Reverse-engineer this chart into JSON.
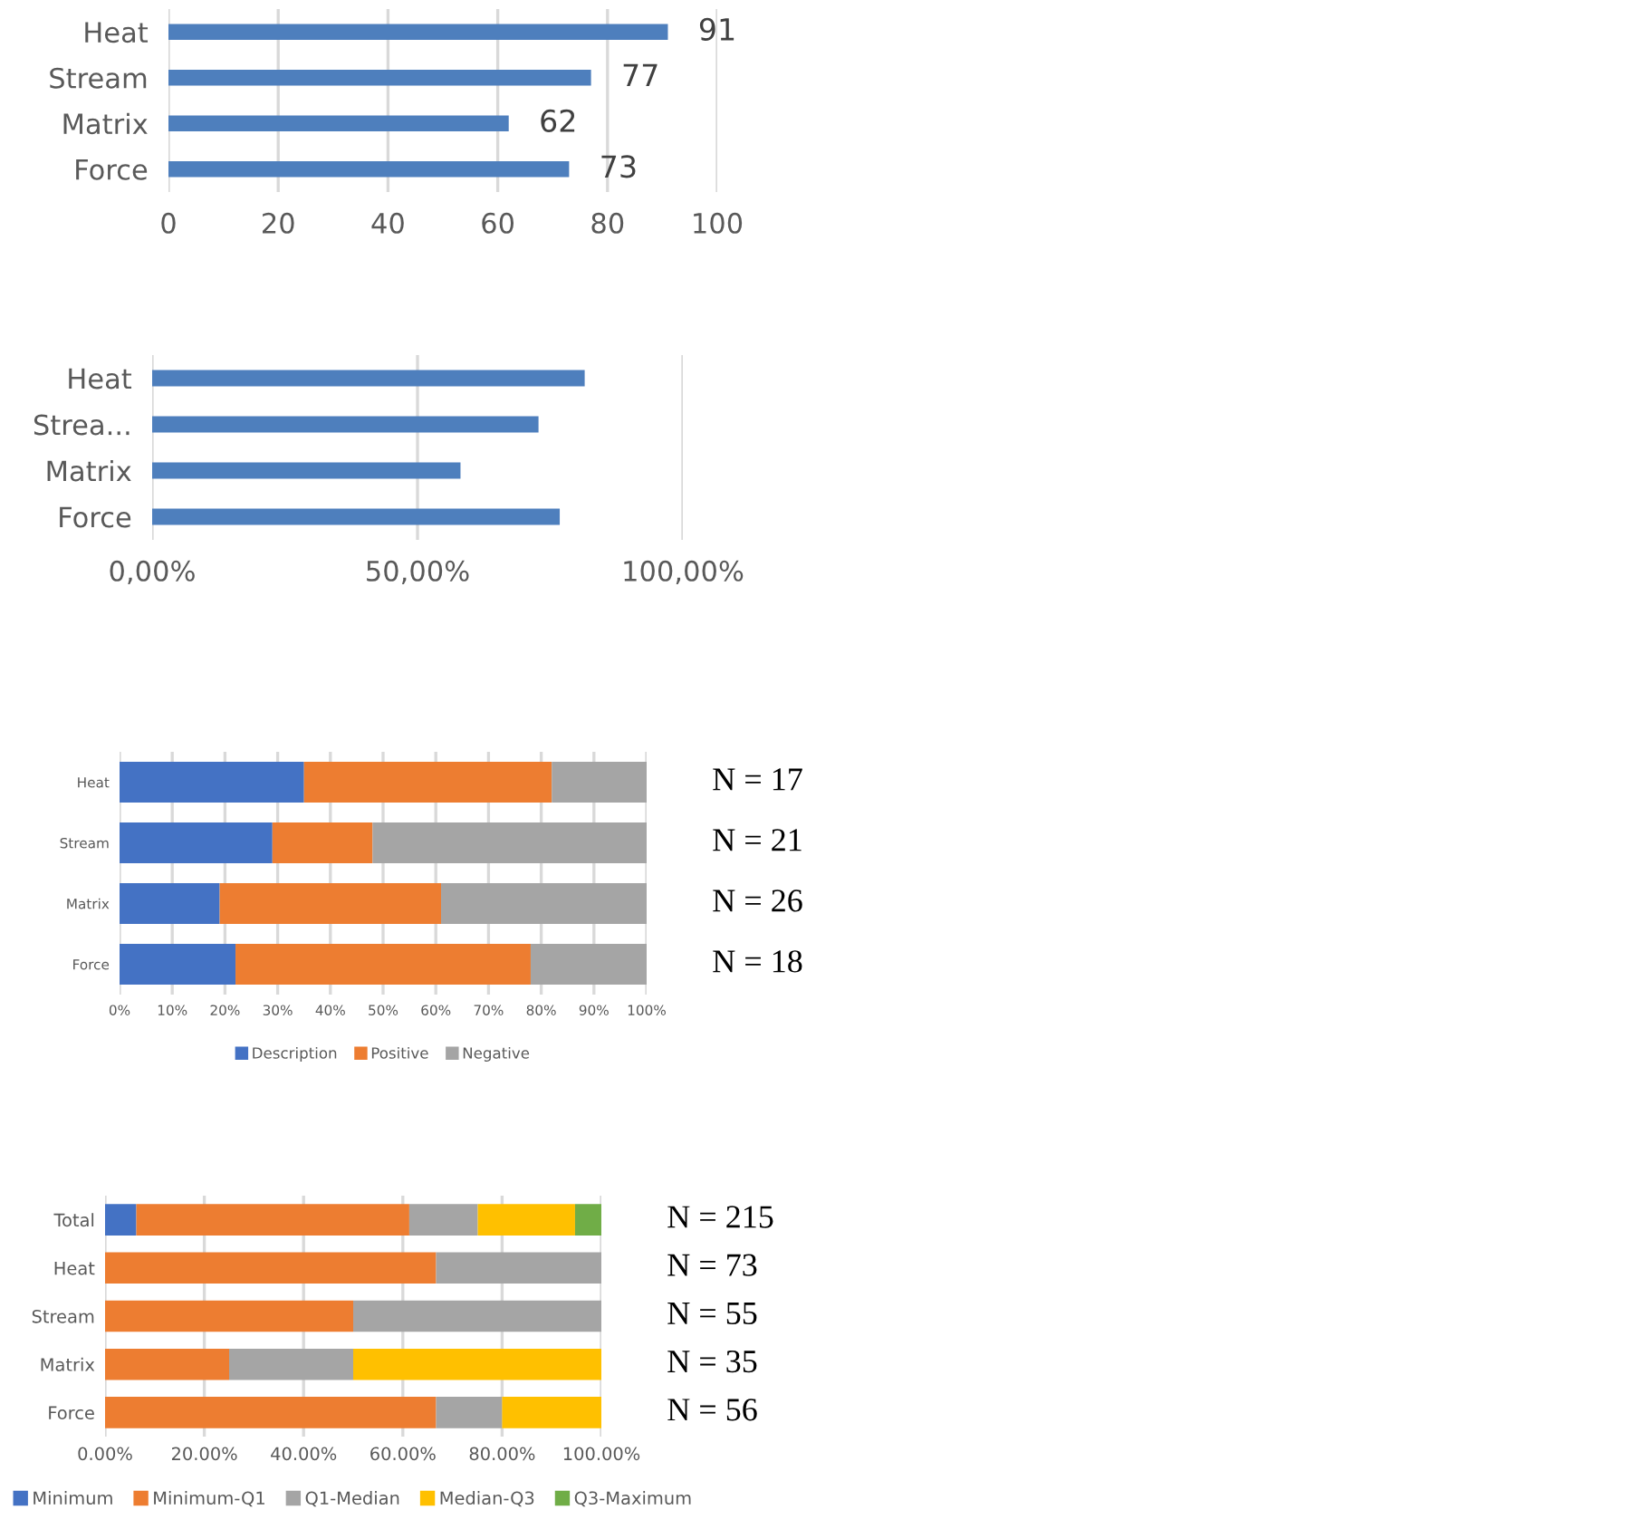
{
  "chart_data": [
    {
      "type": "bar",
      "orientation": "horizontal",
      "categories": [
        "Heat",
        "Stream",
        "Matrix",
        "Force"
      ],
      "series": [
        {
          "color": "#4e7fbd",
          "values": [
            91,
            77,
            62,
            73
          ]
        }
      ],
      "xlim": [
        0,
        100
      ],
      "xticks": [
        0,
        20,
        40,
        60,
        80,
        100
      ],
      "grid": "x",
      "data_labels": true,
      "legend": false
    },
    {
      "type": "bar",
      "orientation": "horizontal",
      "categories": [
        "Heat",
        "Strea...",
        "Matrix",
        "Force"
      ],
      "series": [
        {
          "color": "#4e7fbd",
          "values": [
            81.5,
            72.8,
            58.1,
            76.8
          ]
        }
      ],
      "xlim": [
        0,
        100
      ],
      "xticks": [
        {
          "value": 0,
          "label": "0,00%"
        },
        {
          "value": 50,
          "label": "50,00%"
        },
        {
          "value": 100,
          "label": "100,00%"
        }
      ],
      "grid": "x",
      "legend": false
    },
    {
      "type": "bar",
      "orientation": "horizontal",
      "stacked": true,
      "categories": [
        "Heat",
        "Stream",
        "Matrix",
        "Force"
      ],
      "series": [
        {
          "name": "Description",
          "color": "#4472c4",
          "values": [
            35,
            29,
            19,
            22
          ]
        },
        {
          "name": "Positive",
          "color": "#ed7d31",
          "values": [
            47,
            19,
            42,
            56
          ]
        },
        {
          "name": "Negative",
          "color": "#a5a5a5",
          "values": [
            18,
            52,
            39,
            22
          ]
        }
      ],
      "xlim": [
        0,
        100
      ],
      "xticks": [
        {
          "value": 0,
          "label": "0%"
        },
        {
          "value": 10,
          "label": "10%"
        },
        {
          "value": 20,
          "label": "20%"
        },
        {
          "value": 30,
          "label": "30%"
        },
        {
          "value": 40,
          "label": "40%"
        },
        {
          "value": 50,
          "label": "50%"
        },
        {
          "value": 60,
          "label": "60%"
        },
        {
          "value": 70,
          "label": "70%"
        },
        {
          "value": 80,
          "label": "80%"
        },
        {
          "value": 90,
          "label": "90%"
        },
        {
          "value": 100,
          "label": "100%"
        }
      ],
      "grid": "x",
      "legend": "bottom",
      "annotations": [
        "N = 17",
        "N = 21",
        "N = 26",
        "N = 18"
      ]
    },
    {
      "type": "bar",
      "orientation": "horizontal",
      "stacked": true,
      "categories": [
        "Total",
        "Heat",
        "Stream",
        "Matrix",
        "Force"
      ],
      "series": [
        {
          "name": "Minimum",
          "color": "#4472c4",
          "values": [
            6.3,
            0,
            0,
            0,
            0
          ]
        },
        {
          "name": "Minimum-Q1",
          "color": "#ed7d31",
          "values": [
            55,
            66.7,
            50,
            25,
            66.7
          ]
        },
        {
          "name": "Q1-Median",
          "color": "#a5a5a5",
          "values": [
            13.8,
            33.3,
            50,
            25,
            13.3
          ]
        },
        {
          "name": "Median-Q3",
          "color": "#ffc000",
          "values": [
            19.6,
            0,
            0,
            50,
            20
          ]
        },
        {
          "name": "Q3-Maximum",
          "color": "#70ad47",
          "values": [
            5.3,
            0,
            0,
            0,
            0
          ]
        }
      ],
      "xlim": [
        0,
        100
      ],
      "xticks": [
        {
          "value": 0,
          "label": "0.00%"
        },
        {
          "value": 20,
          "label": "20.00%"
        },
        {
          "value": 40,
          "label": "40.00%"
        },
        {
          "value": 60,
          "label": "60.00%"
        },
        {
          "value": 80,
          "label": "80.00%"
        },
        {
          "value": 100,
          "label": "100.00%"
        }
      ],
      "grid": "x",
      "legend": "bottom",
      "annotations": [
        "N = 215",
        "N = 73",
        "N = 55",
        "N = 35",
        "N = 56"
      ]
    }
  ]
}
